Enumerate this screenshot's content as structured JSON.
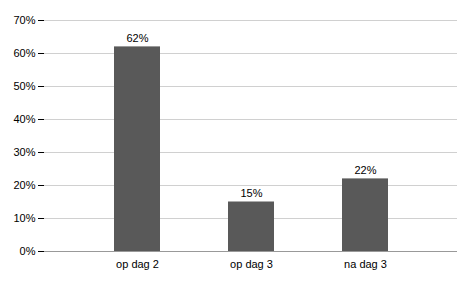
{
  "chart_data": {
    "type": "bar",
    "categories": [
      "op dag 2",
      "op dag 3",
      "na dag 3"
    ],
    "values": [
      62,
      15,
      22
    ],
    "value_labels": [
      "62%",
      "15%",
      "22%"
    ],
    "data_labels": true,
    "color": "#595959",
    "ylim": [
      0,
      70
    ],
    "yticks": [
      {
        "value": 0,
        "label": "0%"
      },
      {
        "value": 10,
        "label": "10%"
      },
      {
        "value": 20,
        "label": "20%"
      },
      {
        "value": 30,
        "label": "30%"
      },
      {
        "value": 40,
        "label": "40%"
      },
      {
        "value": 50,
        "label": "50%"
      },
      {
        "value": 60,
        "label": "60%"
      },
      {
        "value": 70,
        "label": "70%"
      }
    ],
    "grid": true
  }
}
